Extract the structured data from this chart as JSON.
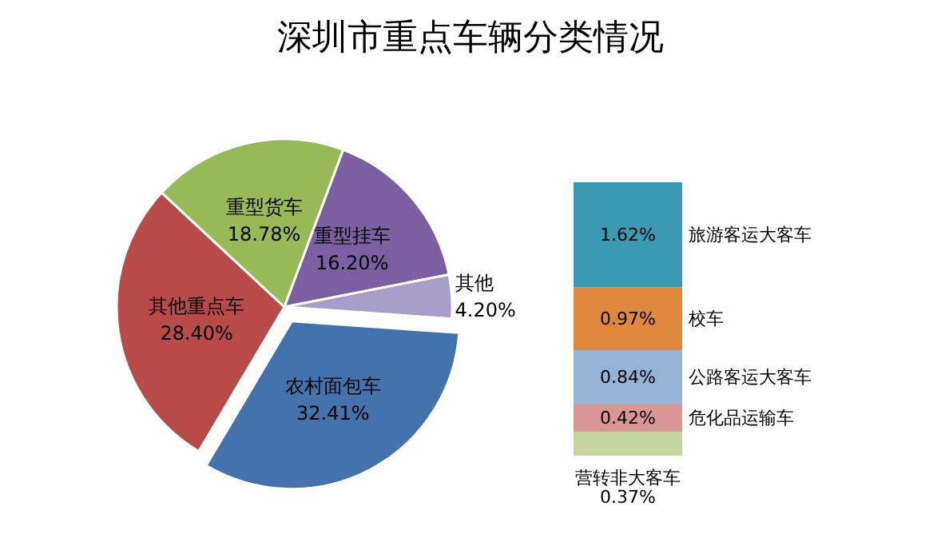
{
  "chart_data": [
    {
      "type": "pie",
      "title": "深圳市重点车辆分类情况",
      "categories": [
        "农村面包车",
        "其他重点车",
        "重型货车",
        "重型挂车",
        "其他"
      ],
      "values": [
        32.41,
        28.4,
        18.78,
        16.2,
        4.2
      ],
      "value_labels": [
        "32.41%",
        "28.40%",
        "18.78%",
        "16.20%",
        "4.20%"
      ],
      "colors": [
        "#4372ad",
        "#b84a47",
        "#97b956",
        "#7b5fa0",
        "#a89cc8"
      ]
    },
    {
      "type": "bar",
      "stacked": true,
      "categories": [
        null
      ],
      "series": [
        {
          "name": "营转非大客车",
          "color": "#c3d69b",
          "values": [
            0.37
          ],
          "value_labels": [
            "0.37%"
          ]
        },
        {
          "name": "危化品运输车",
          "color": "#d99694",
          "values": [
            0.42
          ],
          "value_labels": [
            "0.42%"
          ]
        },
        {
          "name": "公路客运大客车",
          "color": "#95b3d7",
          "values": [
            0.84
          ],
          "value_labels": [
            "0.84%"
          ]
        },
        {
          "name": "校车",
          "color": "#e0873c",
          "values": [
            0.97
          ],
          "value_labels": [
            "0.97%"
          ]
        },
        {
          "name": "旅游客运大客车",
          "color": "#3a9ab3",
          "values": [
            1.62
          ],
          "value_labels": [
            "1.62%"
          ]
        }
      ]
    }
  ]
}
